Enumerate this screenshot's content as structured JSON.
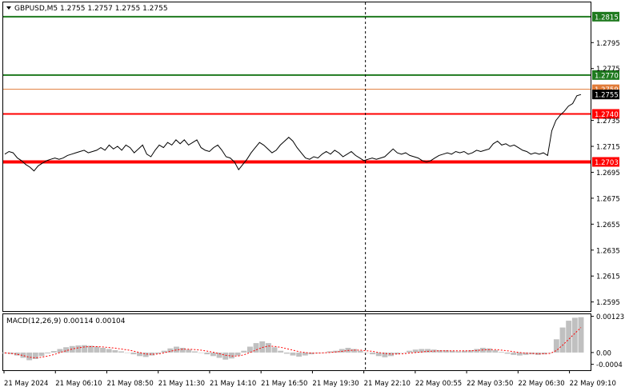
{
  "chart_data": [
    {
      "type": "line",
      "header": "GBPUSD,M5  1.2755 1.2757 1.2755 1.2755",
      "ylim": [
        1.2588,
        1.2826
      ],
      "y_ticks": [
        "1.2795",
        "1.2775",
        "1.2735",
        "1.2715",
        "1.2695",
        "1.2675",
        "1.2655",
        "1.2635",
        "1.2615",
        "1.2595"
      ],
      "x_ticks": [
        "21 May 2024",
        "21 May 06:10",
        "21 May 08:50",
        "21 May 11:30",
        "21 May 14:10",
        "21 May 16:50",
        "21 May 19:30",
        "21 May 22:10",
        "22 May 00:55",
        "22 May 03:50",
        "22 May 06:30",
        "22 May 09:10"
      ],
      "levels": [
        {
          "value": 1.2815,
          "label": "1.2815",
          "color": "#1f7a1f"
        },
        {
          "value": 1.277,
          "label": "1.2770",
          "color": "#1f7a1f"
        },
        {
          "value": 1.2759,
          "label": "1.2759",
          "color": "#e07b39"
        },
        {
          "value": 1.274,
          "label": "1.2740",
          "color": "#ff0000"
        },
        {
          "value": 1.2703,
          "label": "1.2703",
          "color": "#ff0000"
        }
      ],
      "current_price": "1.2755",
      "separator_at_tick": "21 May 22:10",
      "price_series": [
        1.2709,
        1.2711,
        1.271,
        1.2706,
        1.2704,
        1.2701,
        1.2699,
        1.2696,
        1.27,
        1.2702,
        1.2704,
        1.2705,
        1.2706,
        1.2705,
        1.2706,
        1.2708,
        1.2709,
        1.271,
        1.2711,
        1.2712,
        1.271,
        1.2711,
        1.2712,
        1.2714,
        1.2712,
        1.2716,
        1.2713,
        1.2715,
        1.2712,
        1.2716,
        1.2714,
        1.271,
        1.2713,
        1.2716,
        1.2709,
        1.2707,
        1.2712,
        1.2716,
        1.2714,
        1.2718,
        1.2716,
        1.272,
        1.2717,
        1.272,
        1.2716,
        1.2718,
        1.272,
        1.2714,
        1.2712,
        1.2711,
        1.2714,
        1.2716,
        1.2712,
        1.2707,
        1.2706,
        1.2703,
        1.2697,
        1.2701,
        1.2705,
        1.271,
        1.2714,
        1.2718,
        1.2716,
        1.2713,
        1.271,
        1.2712,
        1.2716,
        1.2719,
        1.2722,
        1.2719,
        1.2714,
        1.271,
        1.2706,
        1.2705,
        1.2707,
        1.2706,
        1.2709,
        1.2711,
        1.2709,
        1.2712,
        1.271,
        1.2707,
        1.2709,
        1.2711,
        1.2708,
        1.2706,
        1.2704,
        1.2705,
        1.2706,
        1.2705,
        1.2706,
        1.2707,
        1.271,
        1.2713,
        1.271,
        1.2709,
        1.271,
        1.2708,
        1.2707,
        1.2706,
        1.2704,
        1.2703,
        1.2704,
        1.2706,
        1.2708,
        1.2709,
        1.271,
        1.2709,
        1.2711,
        1.271,
        1.2711,
        1.2709,
        1.271,
        1.2712,
        1.2711,
        1.2712,
        1.2713,
        1.2717,
        1.2719,
        1.2716,
        1.2717,
        1.2715,
        1.2716,
        1.2714,
        1.2712,
        1.2711,
        1.2709,
        1.271,
        1.2709,
        1.271,
        1.2708,
        1.2727,
        1.2735,
        1.2739,
        1.2742,
        1.2746,
        1.2748,
        1.2754,
        1.2755
      ],
      "macd_label": "MACD(12,26,9) 0.00114 0.00104",
      "macd_ylim": [
        -0.0006,
        0.0013
      ],
      "macd_ticks": [
        "0.00123",
        "0.00",
        "-0.0004"
      ],
      "macd_hist": [
        -3e-05,
        -5e-05,
        -0.0001,
        -0.00018,
        -0.00026,
        -0.00022,
        -0.00012,
        -3e-05,
        5e-05,
        0.00012,
        0.00018,
        0.00022,
        0.00024,
        0.00025,
        0.00023,
        0.0002,
        0.00016,
        0.00012,
        8e-05,
        4e-05,
        0.0,
        -6e-05,
        -0.00012,
        -0.00015,
        -0.0001,
        -4e-05,
        6e-05,
        0.00014,
        0.0002,
        0.00016,
        0.0001,
        4e-05,
        0.0,
        -6e-05,
        -0.00012,
        -0.00018,
        -0.00024,
        -0.0002,
        -0.0001,
        6e-05,
        0.0002,
        0.00032,
        0.00038,
        0.00032,
        0.00018,
        6e-05,
        -4e-05,
        -0.0001,
        -0.00014,
        -0.0001,
        -6e-05,
        -2e-05,
        0.0,
        4e-05,
        6e-05,
        0.00012,
        0.00016,
        0.00012,
        6e-05,
        0.0,
        -6e-05,
        -0.00012,
        -0.00016,
        -0.00012,
        -6e-05,
        0.0,
        6e-05,
        0.0001,
        0.00012,
        0.00012,
        0.0001,
        8e-05,
        8e-05,
        6e-05,
        4e-05,
        6e-05,
        8e-05,
        0.00012,
        0.00016,
        0.00014,
        8e-05,
        2e-05,
        -4e-05,
        -8e-05,
        -0.0001,
        -8e-05,
        -6e-05,
        -8e-05,
        -6e-05,
        0.0,
        0.00045,
        0.00085,
        0.00108,
        0.00118,
        0.0012
      ],
      "macd_signal": [
        -1e-05,
        -3e-05,
        -6e-05,
        -0.0001,
        -0.00016,
        -0.00018,
        -0.00016,
        -0.00012,
        -7e-05,
        0.0,
        6e-05,
        0.00012,
        0.00016,
        0.00019,
        0.0002,
        0.0002,
        0.00019,
        0.00017,
        0.00015,
        0.00012,
        9e-05,
        5e-05,
        0.0,
        -5e-05,
        -6e-05,
        -5e-05,
        -1e-05,
        4e-05,
        9e-05,
        0.00011,
        0.00011,
        0.0001,
        8e-05,
        5e-05,
        1e-05,
        -4e-05,
        -9e-05,
        -0.00012,
        -0.00012,
        -8e-05,
        0.0,
        9e-05,
        0.00017,
        0.00022,
        0.00021,
        0.00018,
        0.00013,
        8e-05,
        3e-05,
        0.0,
        -2e-05,
        -2e-05,
        -1e-05,
        0.0,
        2e-05,
        4e-05,
        7e-05,
        8e-05,
        8e-05,
        6e-05,
        4e-05,
        0.0,
        -3e-05,
        -5e-05,
        -5e-05,
        -4e-05,
        -2e-05,
        0.0,
        2e-05,
        4e-05,
        5e-05,
        6e-05,
        6e-05,
        6e-05,
        6e-05,
        6e-05,
        6e-05,
        7e-05,
        9e-05,
        0.0001,
        0.0001,
        8e-05,
        6e-05,
        3e-05,
        0.0,
        -2e-05,
        -3e-05,
        -4e-05,
        -4e-05,
        -3e-05,
        7e-05,
        0.00025,
        0.00045,
        0.00065,
        0.00085
      ]
    }
  ]
}
